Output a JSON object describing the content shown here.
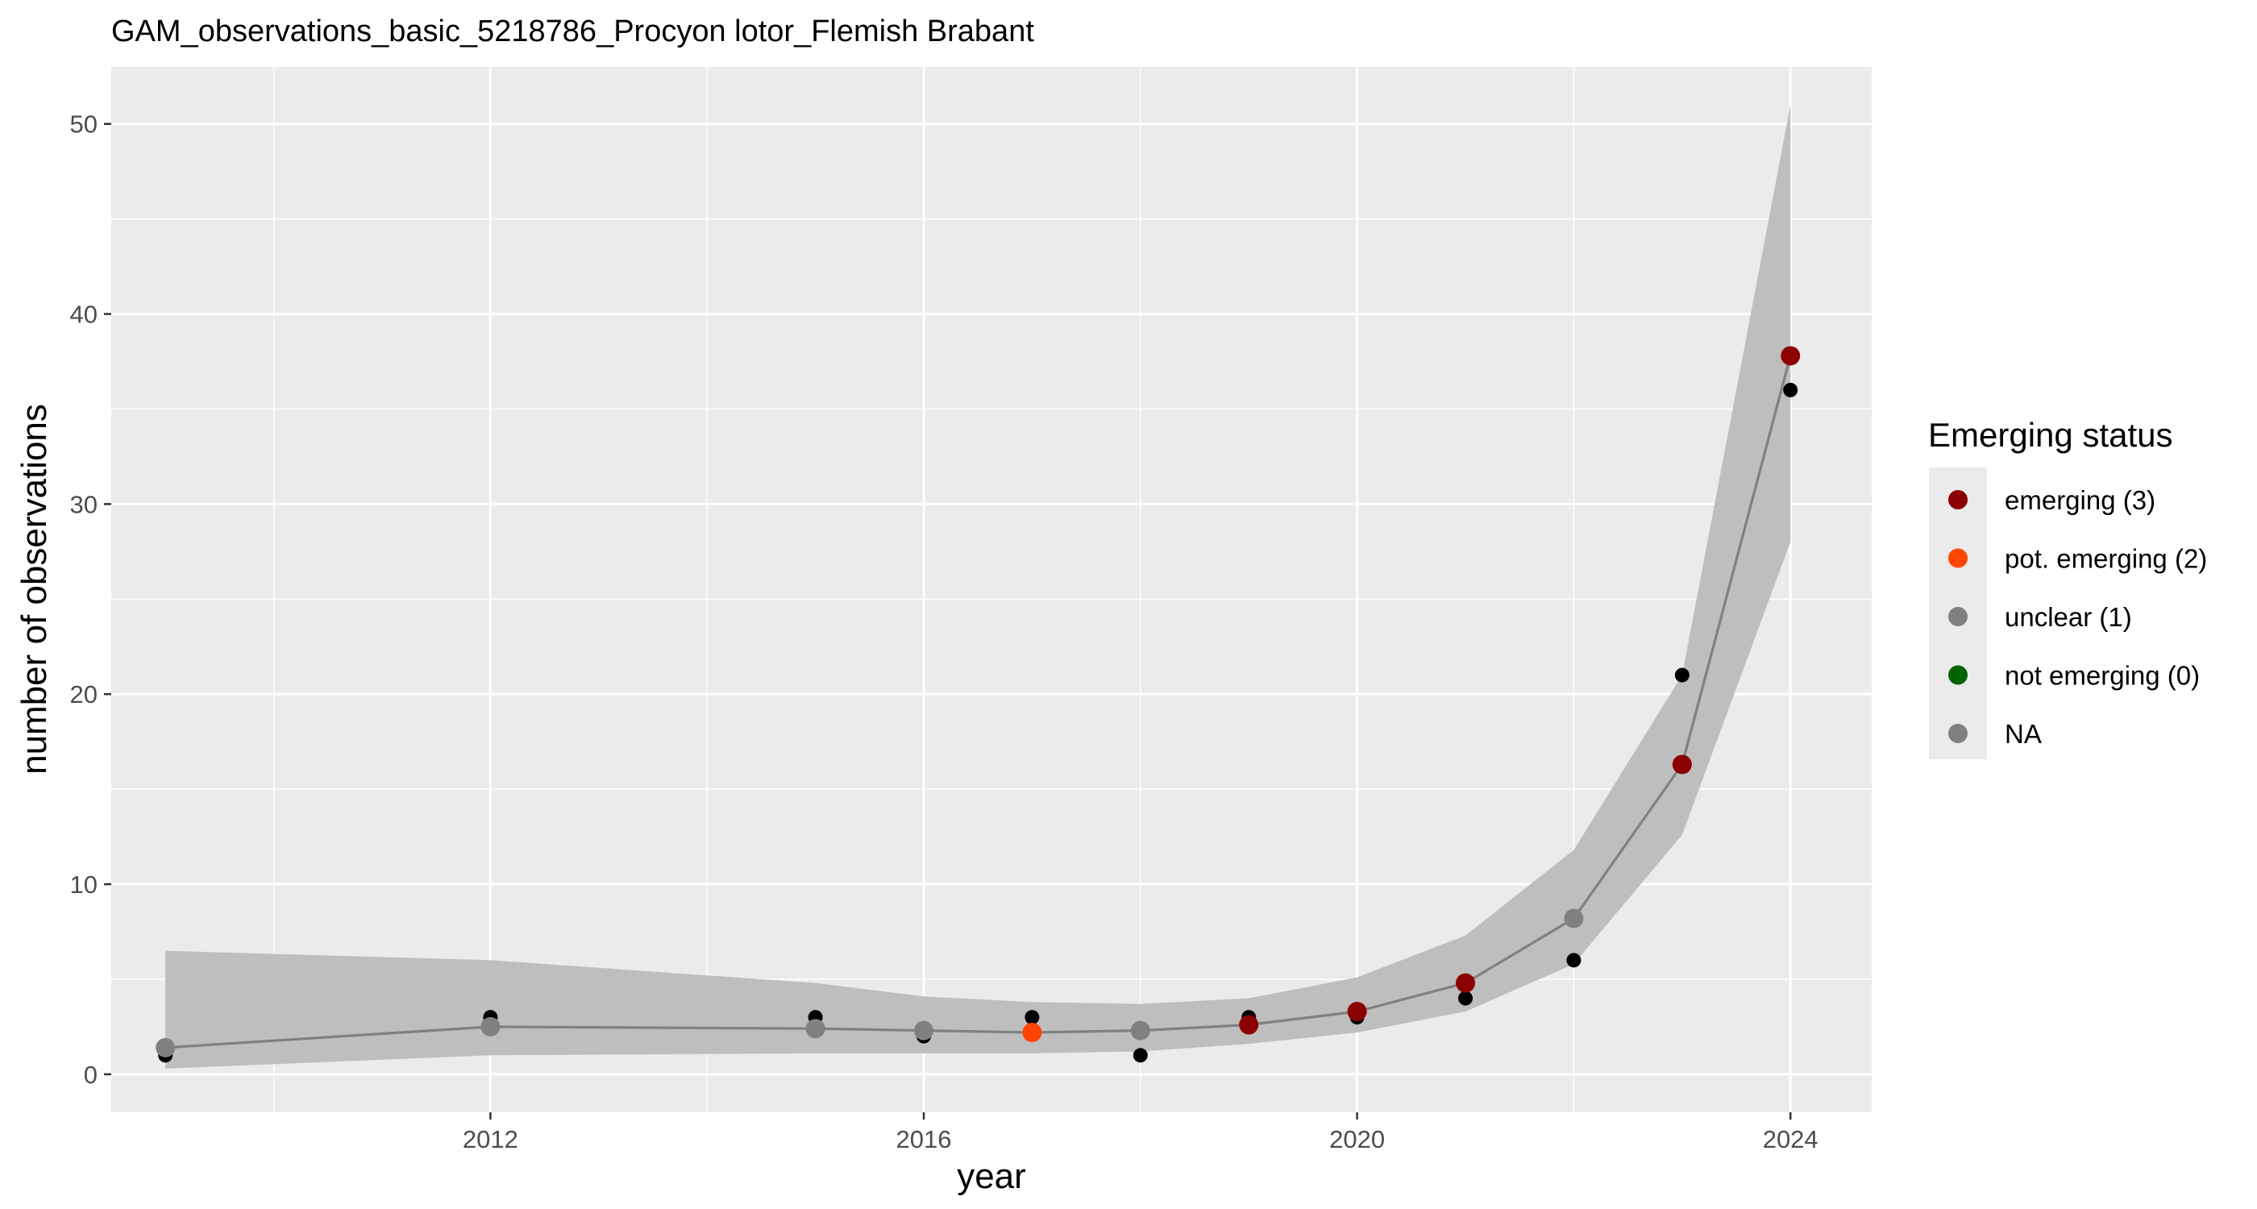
{
  "chart_data": {
    "type": "line",
    "title": "GAM_observations_basic_5218786_Procyon lotor_Flemish Brabant",
    "xlabel": "year",
    "ylabel": "number of observations",
    "xlim": [
      2008.5,
      2024.75
    ],
    "ylim": [
      -2.0,
      53.0
    ],
    "x_ticks": [
      2012,
      2016,
      2020,
      2024
    ],
    "y_ticks": [
      0,
      10,
      20,
      30,
      40,
      50
    ],
    "grid": true,
    "panel_background": "#ebebeb",
    "observed": {
      "x": [
        2009,
        2012,
        2015,
        2016,
        2017,
        2018,
        2019,
        2020,
        2021,
        2022,
        2023,
        2024
      ],
      "y": [
        1,
        3,
        3,
        2,
        3,
        1,
        3,
        3,
        4,
        6,
        21,
        36
      ]
    },
    "fitted": {
      "x": [
        2009,
        2012,
        2015,
        2016,
        2017,
        2018,
        2019,
        2020,
        2021,
        2022,
        2023,
        2024
      ],
      "y": [
        1.4,
        2.5,
        2.4,
        2.3,
        2.2,
        2.3,
        2.6,
        3.3,
        4.8,
        8.2,
        16.3,
        37.8
      ],
      "lower": [
        0.3,
        1.0,
        1.1,
        1.1,
        1.1,
        1.2,
        1.6,
        2.2,
        3.3,
        5.8,
        12.6,
        28.0
      ],
      "upper": [
        6.5,
        6.0,
        4.8,
        4.1,
        3.8,
        3.7,
        4.0,
        5.1,
        7.3,
        11.8,
        21.0,
        51.0
      ],
      "status": [
        "NA",
        "NA",
        "NA",
        "NA",
        "pot. emerging (2)",
        "NA",
        "emerging (3)",
        "emerging (3)",
        "emerging (3)",
        "NA",
        "emerging (3)",
        "emerging (3)"
      ]
    },
    "legend": {
      "title": "Emerging status",
      "placement": "right",
      "entries": [
        {
          "label": "emerging (3)",
          "color": "#8b0000"
        },
        {
          "label": "pot. emerging (2)",
          "color": "#ff4500"
        },
        {
          "label": "unclear (1)",
          "color": "#808080"
        },
        {
          "label": "not emerging (0)",
          "color": "#006400"
        },
        {
          "label": "NA",
          "color": "#808080"
        }
      ]
    },
    "colors": {
      "observed_point": "#000000",
      "fitted_line": "#808080",
      "ribbon": "#bebebe",
      "gridline": "#ffffff"
    }
  }
}
